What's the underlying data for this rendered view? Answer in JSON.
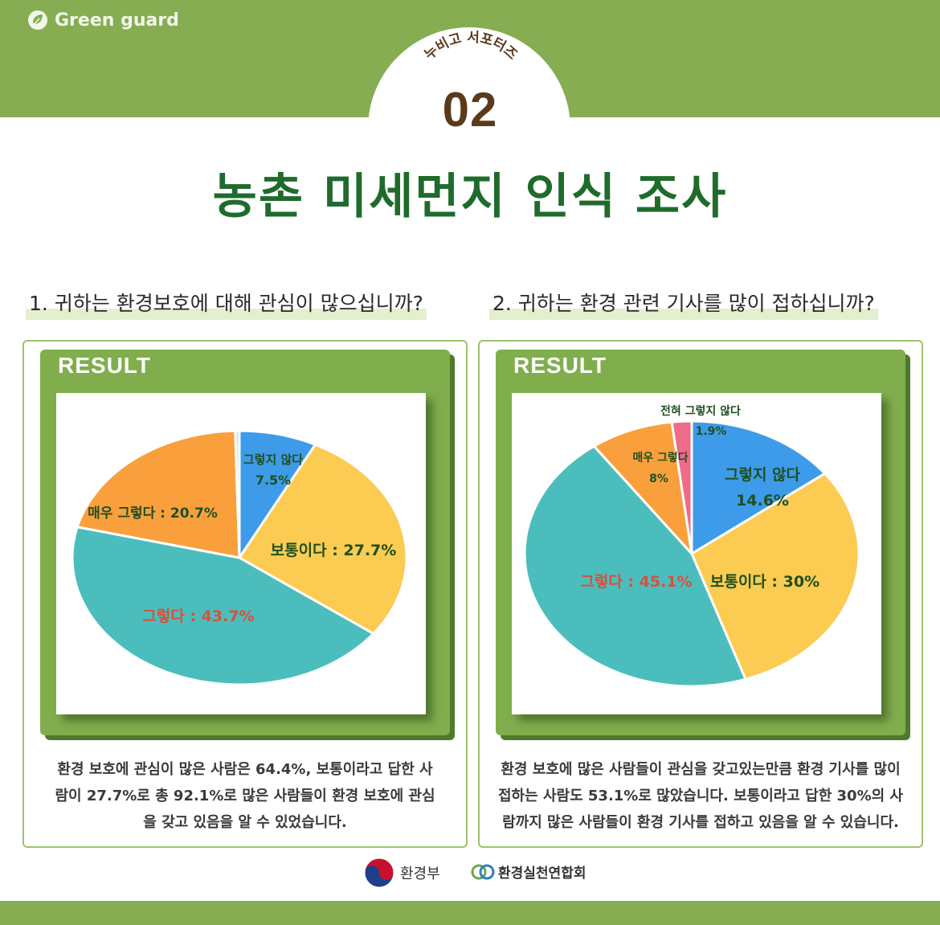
{
  "header": {
    "brand": "Green guard",
    "badge_subtitle": "누비고 서포터즈",
    "badge_number": "02",
    "title": "농촌 미세먼지 인식 조사"
  },
  "questions": [
    "1. 귀하는 환경보호에 대해 관심이 많으십니까?",
    "2. 귀하는 환경 관련 기사를 많이 접하십니까?"
  ],
  "result_label": "RESULT",
  "colors": {
    "brand_green": "#86ad52",
    "title_green": "#1f6b2c",
    "blue": "#3d9be9",
    "yellow": "#fbcb52",
    "teal": "#4cbdbd",
    "orange": "#f9a03c",
    "pink": "#ee6b8a",
    "lightblue": "#cfe3f5"
  },
  "chart_data": [
    {
      "type": "pie",
      "slices": [
        {
          "label": "그렇지 않다",
          "value": 7.5,
          "display": "7.5%",
          "color": "#3d9be9"
        },
        {
          "label": "보통이다",
          "value": 27.7,
          "display": "27.7%",
          "color": "#fbcb52"
        },
        {
          "label": "그렇다",
          "value": 43.7,
          "display": "43.7%",
          "color": "#4cbdbd"
        },
        {
          "label": "매우 그렇다",
          "value": 20.7,
          "display": "20.7%",
          "color": "#f9a03c"
        },
        {
          "label": "",
          "value": 0.4,
          "display": "",
          "color": "#cfe3f5"
        }
      ],
      "label_texts": [
        {
          "text": "그렇지 않다",
          "color": "#1f4f20"
        },
        {
          "text": "7.5%",
          "color": "#1f4f20"
        },
        {
          "text": "보통이다 :  27.7%",
          "color": "#1f4f20"
        },
        {
          "text": "그렇다 :  43.7%",
          "color": "#d9503a"
        },
        {
          "text": "매우 그렇다 : 20.7%",
          "color": "#1f4f20"
        }
      ],
      "summary": [
        "환경 보호에 관심이 많은 사람은 64.4%, 보통이라고 답한 사",
        "람이 27.7%로 총 92.1%로 많은 사람들이 환경 보호에 관심",
        "을 갖고 있음을 알 수 있었습니다."
      ]
    },
    {
      "type": "pie",
      "slices": [
        {
          "label": "그렇지 않다",
          "value": 14.6,
          "display": "14.6%",
          "color": "#3d9be9"
        },
        {
          "label": "보통이다",
          "value": 30,
          "display": "30%",
          "color": "#fbcb52"
        },
        {
          "label": "그렇다",
          "value": 45.1,
          "display": "45.1%",
          "color": "#4cbdbd"
        },
        {
          "label": "매우 그렇다",
          "value": 8,
          "display": "8%",
          "color": "#f9a03c"
        },
        {
          "label": "전혀 그렇지 않다",
          "value": 1.9,
          "display": "1.9%",
          "color": "#ee6b8a"
        }
      ],
      "label_texts": [
        {
          "text": "전혀 그렇지 않다",
          "color": "#1f4f20"
        },
        {
          "text": "1.9%",
          "color": "#1f4f20"
        },
        {
          "text": "매우 그렇다",
          "color": "#1f4f20"
        },
        {
          "text": "8%",
          "color": "#1f4f20"
        },
        {
          "text": "그렇지 않다",
          "color": "#1f4f20"
        },
        {
          "text": "14.6%",
          "color": "#1f4f20"
        },
        {
          "text": "보통이다 :  30%",
          "color": "#1f4f20"
        },
        {
          "text": "그렇다 :  45.1%",
          "color": "#d9503a"
        }
      ],
      "summary": [
        "환경 보호에 많은 사람들이 관심을 갖고있는만큼 환경 기사를 많이",
        "접하는 사람도 53.1%로 많았습니다. 보통이라고 답한 30%의 사",
        "람까지 많은 사람들이 환경 기사를 접하고 있음을 알 수 있습니다."
      ]
    }
  ],
  "footer": {
    "ministry": "환경부",
    "association": "환경실천연합회"
  }
}
